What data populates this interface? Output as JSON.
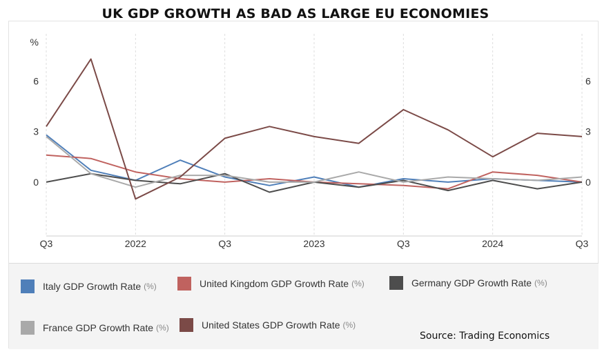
{
  "title": "UK GDP GROWTH AS BAD AS LARGE EU ECONOMIES",
  "source": "Source: Trading Economics",
  "chart_data": {
    "type": "line",
    "title": "UK GDP GROWTH AS BAD AS LARGE EU ECONOMIES",
    "ylabel": "%",
    "ylim": [
      -3.2,
      8.8
    ],
    "y_ticks": [
      "0",
      "3",
      "6"
    ],
    "x": [
      "2021 Q3",
      "2021 Q4",
      "2022 Q1",
      "2022 Q2",
      "2022 Q3",
      "2022 Q4",
      "2023 Q1",
      "2023 Q2",
      "2023 Q3",
      "2023 Q4",
      "2024 Q1",
      "2024 Q2",
      "2024 Q3"
    ],
    "x_ticks": [
      "Q3",
      "2022",
      "Q3",
      "2023",
      "Q3",
      "2024",
      "Q3"
    ],
    "grid": true,
    "legend_position": "bottom",
    "series": [
      {
        "name": "Italy GDP Growth Rate",
        "unit": "(%)",
        "color": "#4f7fb9",
        "values": [
          2.8,
          0.7,
          0.1,
          1.3,
          0.3,
          -0.2,
          0.3,
          -0.3,
          0.2,
          0.0,
          0.2,
          0.1,
          0.0
        ]
      },
      {
        "name": "United Kingdom GDP Growth Rate",
        "unit": "(%)",
        "color": "#c0625f",
        "values": [
          1.6,
          1.4,
          0.6,
          0.2,
          0.0,
          0.2,
          0.0,
          -0.1,
          -0.2,
          -0.4,
          0.6,
          0.4,
          0.0
        ]
      },
      {
        "name": "Germany GDP Growth Rate",
        "unit": "(%)",
        "color": "#4d4d4d",
        "values": [
          0.0,
          0.5,
          0.1,
          -0.1,
          0.5,
          -0.6,
          0.0,
          -0.3,
          0.1,
          -0.5,
          0.1,
          -0.4,
          0.0
        ]
      },
      {
        "name": "France GDP Growth Rate",
        "unit": "(%)",
        "color": "#a9a9a9",
        "values": [
          2.7,
          0.5,
          -0.3,
          0.4,
          0.4,
          0.0,
          0.0,
          0.6,
          0.0,
          0.3,
          0.2,
          0.1,
          0.3
        ]
      },
      {
        "name": "United States GDP Growth Rate",
        "unit": "(%)",
        "color": "#7b4a47",
        "values": [
          3.3,
          7.3,
          -1.0,
          0.3,
          2.6,
          3.3,
          2.7,
          2.3,
          4.3,
          3.1,
          1.5,
          2.9,
          2.7
        ]
      }
    ]
  }
}
